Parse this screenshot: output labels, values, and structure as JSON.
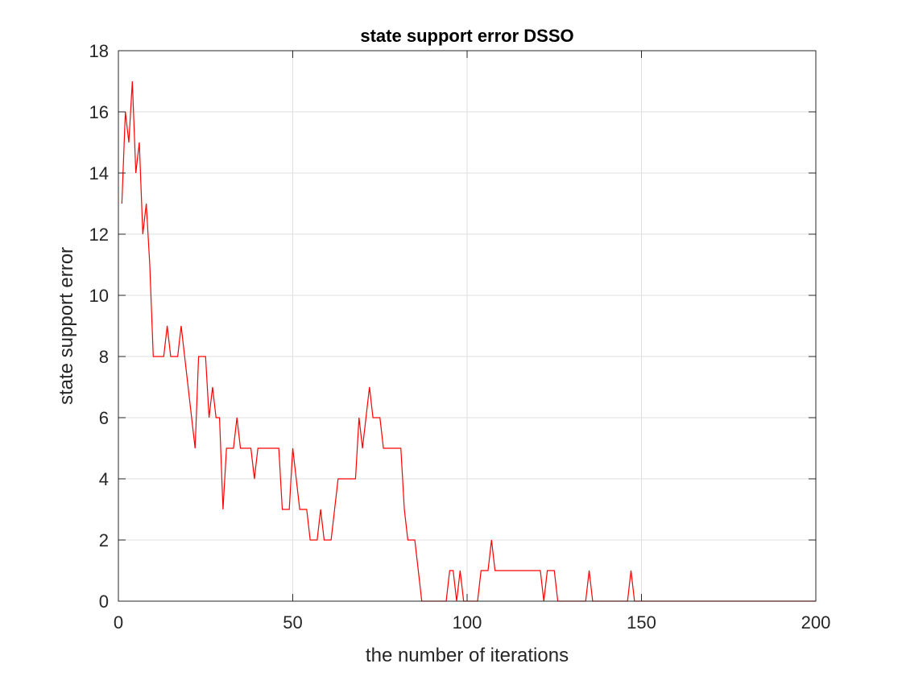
{
  "chart_data": {
    "type": "line",
    "title": "state support error DSSO",
    "xlabel": "the number of iterations",
    "ylabel": "state support error",
    "xlim": [
      0,
      200
    ],
    "ylim": [
      0,
      18
    ],
    "xticks": [
      0,
      50,
      100,
      150,
      200
    ],
    "yticks": [
      0,
      2,
      4,
      6,
      8,
      10,
      12,
      14,
      16,
      18
    ],
    "grid": true,
    "series": [
      {
        "color": "#ff0000",
        "x": [
          1,
          2,
          3,
          4,
          5,
          6,
          7,
          8,
          9,
          10,
          11,
          12,
          13,
          14,
          15,
          16,
          17,
          18,
          19,
          20,
          21,
          22,
          23,
          24,
          25,
          26,
          27,
          28,
          29,
          30,
          31,
          32,
          33,
          34,
          35,
          36,
          37,
          38,
          39,
          40,
          41,
          42,
          43,
          44,
          45,
          46,
          47,
          48,
          49,
          50,
          51,
          52,
          53,
          54,
          55,
          56,
          57,
          58,
          59,
          60,
          61,
          62,
          63,
          64,
          65,
          66,
          67,
          68,
          69,
          70,
          71,
          72,
          73,
          74,
          75,
          76,
          77,
          78,
          79,
          80,
          81,
          82,
          83,
          84,
          85,
          86,
          87,
          88,
          89,
          90,
          91,
          92,
          93,
          94,
          95,
          96,
          97,
          98,
          99,
          100,
          101,
          102,
          103,
          104,
          105,
          106,
          107,
          108,
          109,
          110,
          111,
          112,
          113,
          114,
          115,
          116,
          117,
          118,
          119,
          120,
          121,
          122,
          123,
          124,
          125,
          126,
          127,
          128,
          129,
          130,
          131,
          132,
          133,
          134,
          135,
          136,
          137,
          138,
          139,
          140,
          141,
          142,
          143,
          144,
          145,
          146,
          147,
          148,
          149,
          150,
          151,
          152,
          153,
          154,
          155,
          156,
          157,
          158,
          159,
          160,
          161,
          162,
          163,
          164,
          165,
          166,
          167,
          168,
          169,
          170,
          171,
          172,
          173,
          174,
          175,
          176,
          177,
          178,
          179,
          180,
          181,
          182,
          183,
          184,
          185,
          186,
          187,
          188,
          189,
          190,
          191,
          192,
          193,
          194,
          195,
          196,
          197,
          198,
          199,
          200
        ],
        "y": [
          13,
          16,
          15,
          17,
          14,
          15,
          12,
          13,
          11,
          8,
          8,
          8,
          8,
          9,
          8,
          8,
          8,
          9,
          8,
          7,
          6,
          5,
          8,
          8,
          8,
          6,
          7,
          6,
          6,
          3,
          5,
          5,
          5,
          6,
          5,
          5,
          5,
          5,
          4,
          5,
          5,
          5,
          5,
          5,
          5,
          5,
          3,
          3,
          3,
          5,
          4,
          3,
          3,
          3,
          2,
          2,
          2,
          3,
          2,
          2,
          2,
          3,
          4,
          4,
          4,
          4,
          4,
          4,
          6,
          5,
          6,
          7,
          6,
          6,
          6,
          5,
          5,
          5,
          5,
          5,
          5,
          3,
          2,
          2,
          2,
          1,
          0,
          0,
          0,
          0,
          0,
          0,
          0,
          0,
          1,
          1,
          0,
          1,
          0,
          0,
          0,
          0,
          0,
          1,
          1,
          1,
          2,
          1,
          1,
          1,
          1,
          1,
          1,
          1,
          1,
          1,
          1,
          1,
          1,
          1,
          1,
          0,
          1,
          1,
          1,
          0,
          0,
          0,
          0,
          0,
          0,
          0,
          0,
          0,
          1,
          0,
          0,
          0,
          0,
          0,
          0,
          0,
          0,
          0,
          0,
          0,
          1,
          0,
          0,
          0,
          0,
          0,
          0,
          0,
          0,
          0,
          0,
          0,
          0,
          0,
          0,
          0,
          0,
          0,
          0,
          0,
          0,
          0,
          0,
          0,
          0,
          0,
          0,
          0,
          0,
          0,
          0,
          0,
          0,
          0,
          0,
          0,
          0,
          0,
          0,
          0,
          0,
          0,
          0,
          0,
          0,
          0,
          0,
          0,
          0,
          0,
          0,
          0,
          0,
          0
        ]
      }
    ]
  }
}
